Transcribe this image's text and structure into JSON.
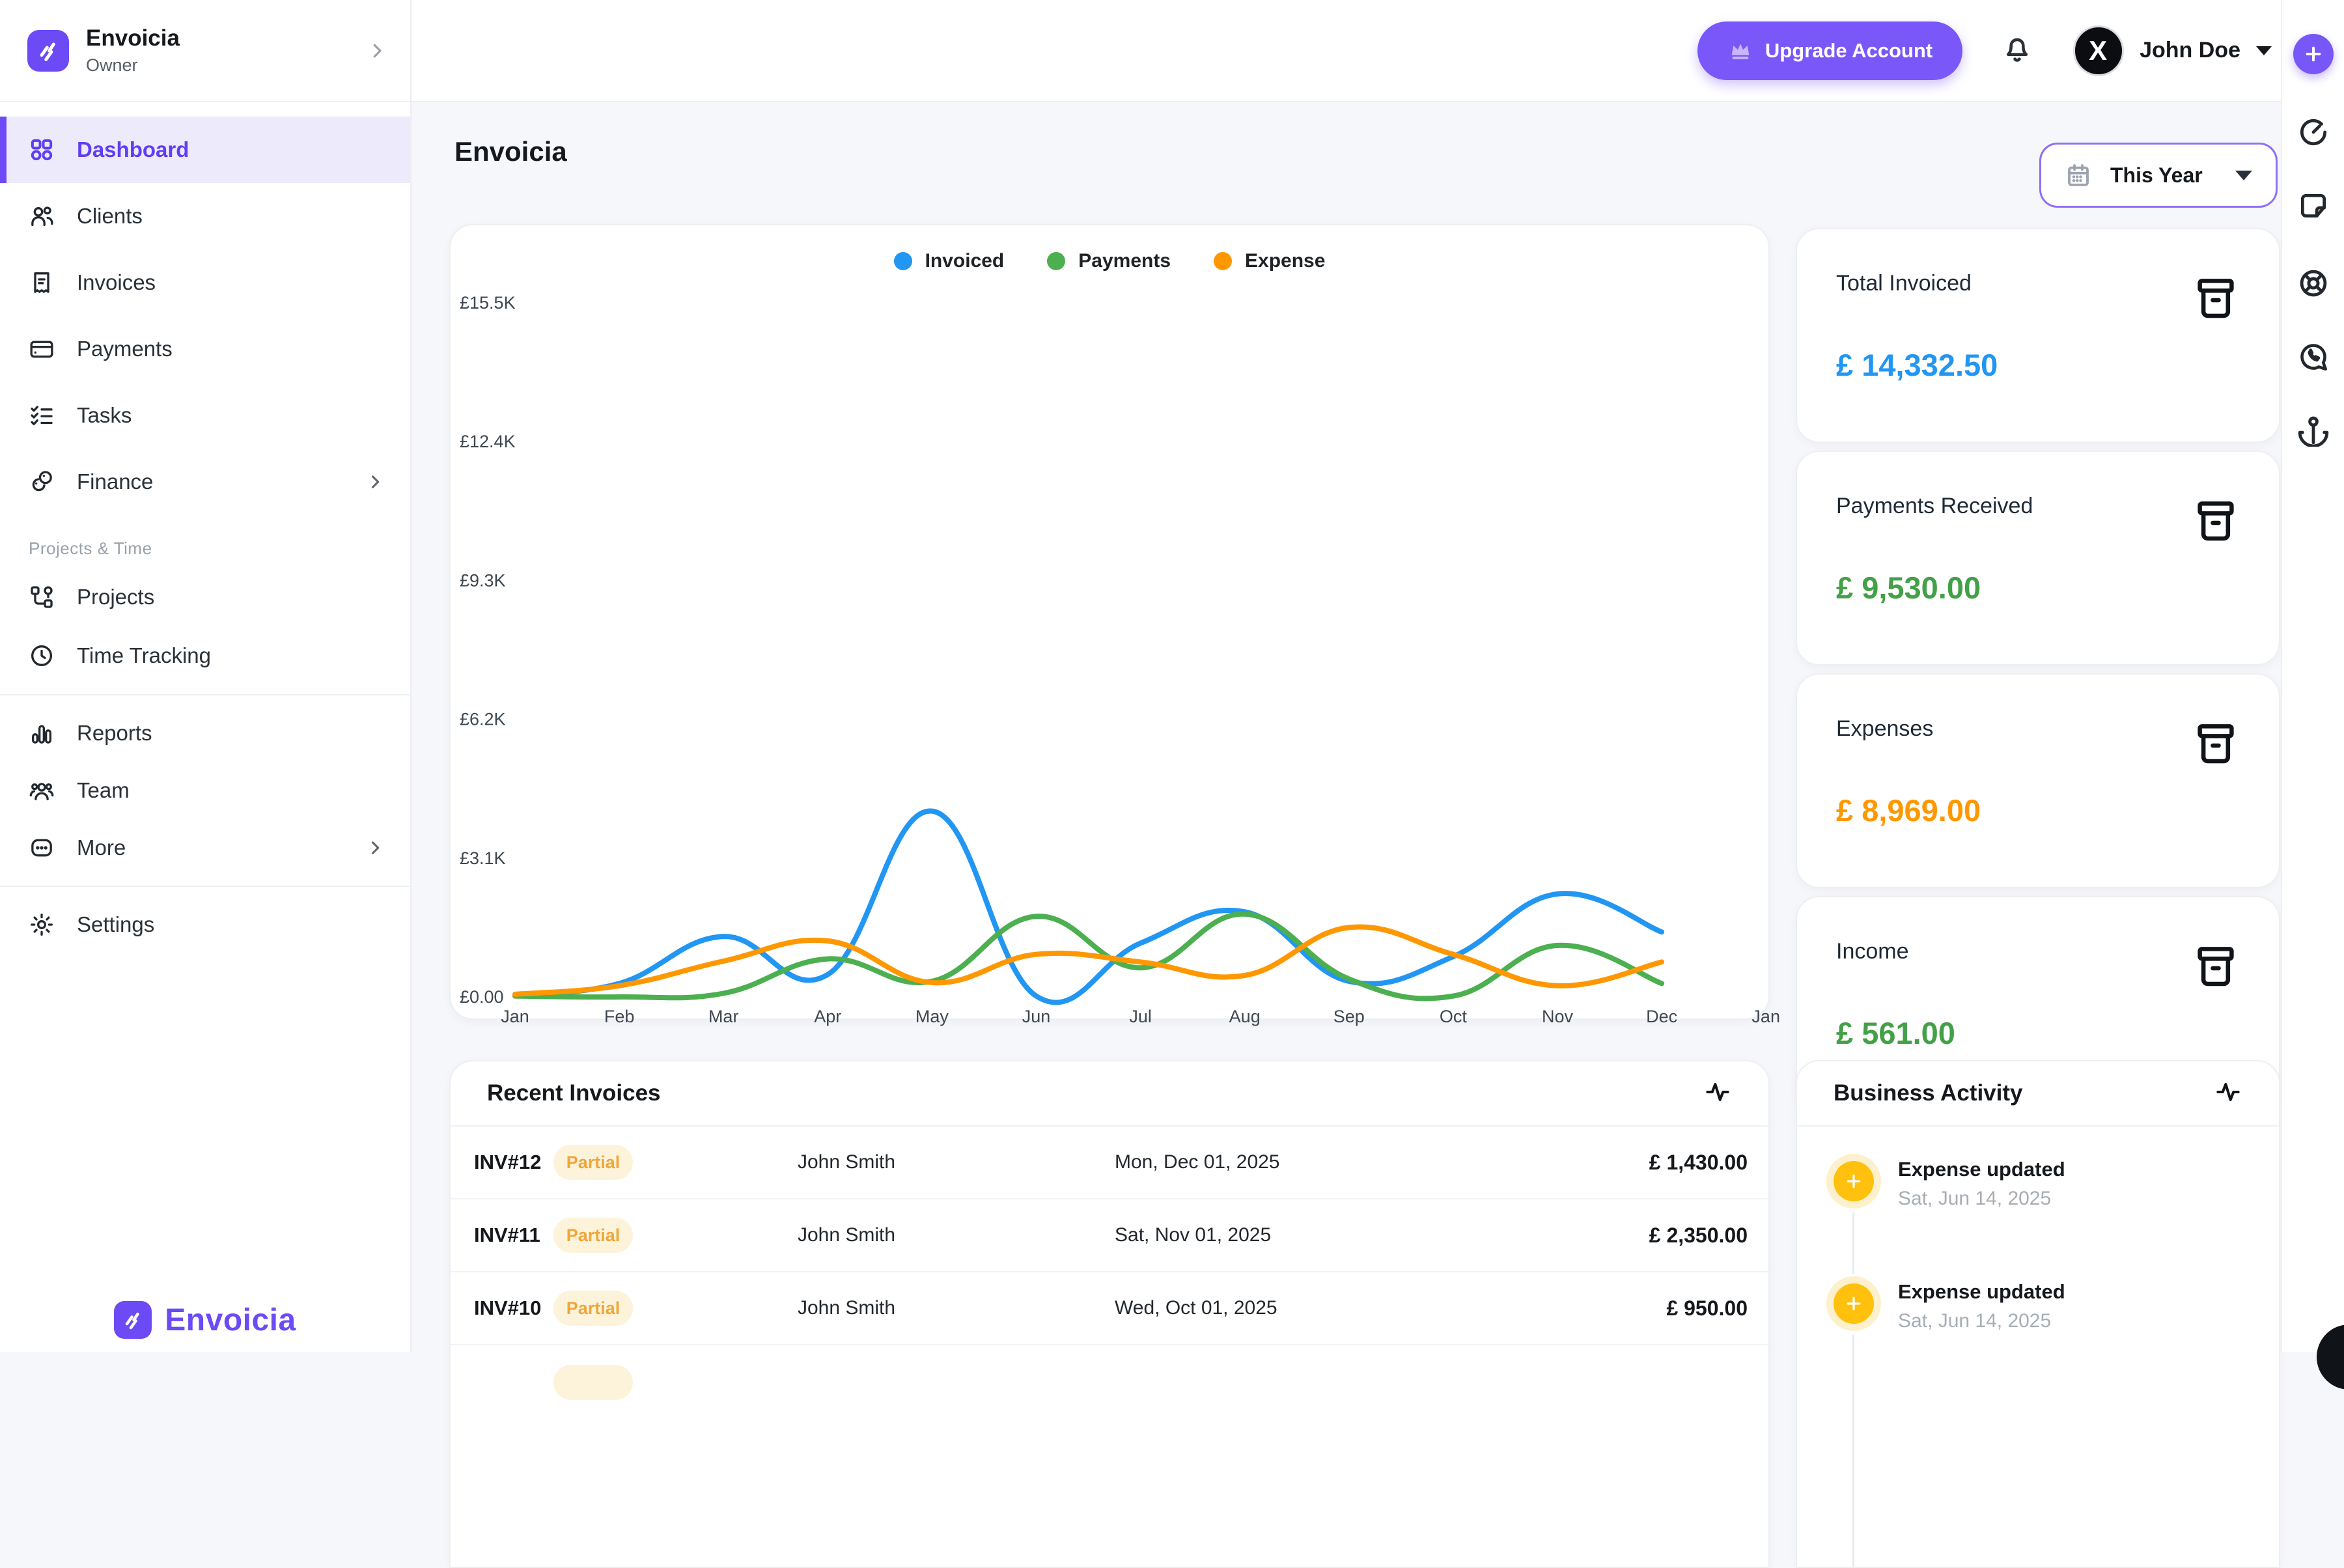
{
  "brand": {
    "name": "Envoicia",
    "role": "Owner",
    "footer_name": "Envoicia"
  },
  "header": {
    "upgrade_label": "Upgrade Account",
    "user_name": "John Doe",
    "avatar_text": "X"
  },
  "sidebar": {
    "main_items": [
      {
        "label": "Dashboard"
      },
      {
        "label": "Clients"
      },
      {
        "label": "Invoices"
      },
      {
        "label": "Payments"
      },
      {
        "label": "Tasks"
      },
      {
        "label": "Finance"
      }
    ],
    "section_label": "Projects & Time",
    "project_items": [
      {
        "label": "Projects"
      },
      {
        "label": "Time Tracking"
      }
    ],
    "tool_items": [
      {
        "label": "Reports"
      },
      {
        "label": "Team"
      },
      {
        "label": "More"
      }
    ],
    "settings_label": "Settings"
  },
  "page": {
    "title": "Envoicia",
    "date_filter": "This Year"
  },
  "chart_data": {
    "type": "line",
    "x_labels": [
      "Jan",
      "Feb",
      "Mar",
      "Apr",
      "May",
      "Jun",
      "Jul",
      "Aug",
      "Sep",
      "Oct",
      "Nov",
      "Dec",
      "Jan"
    ],
    "y_ticks": [
      "£0.00",
      "£3.1K",
      "£6.2K",
      "£9.3K",
      "£12.4K",
      "£15.5K"
    ],
    "y_min_k": 0,
    "y_max_k": 15.5,
    "unit": "GBP (thousands)",
    "grid": false,
    "legend_position": "top",
    "series": [
      {
        "name": "Invoiced",
        "color": "#2196F3",
        "values_k": [
          0.05,
          0.3,
          1.35,
          0.5,
          4.15,
          0.02,
          1.2,
          1.9,
          0.35,
          0.9,
          2.3,
          1.45
        ]
      },
      {
        "name": "Payments",
        "color": "#4CAF50",
        "values_k": [
          0.02,
          0.0,
          0.08,
          0.85,
          0.35,
          1.8,
          0.65,
          1.85,
          0.4,
          0.02,
          1.15,
          0.3
        ]
      },
      {
        "name": "Expense",
        "color": "#FF9800",
        "values_k": [
          0.06,
          0.25,
          0.8,
          1.25,
          0.32,
          0.95,
          0.78,
          0.48,
          1.55,
          0.95,
          0.25,
          0.78
        ]
      }
    ]
  },
  "summary_cards": [
    {
      "title": "Total Invoiced",
      "value": "£ 14,332.50",
      "color": "#2196F3"
    },
    {
      "title": "Payments Received",
      "value": "£ 9,530.00",
      "color": "#43A047"
    },
    {
      "title": "Expenses",
      "value": "£ 8,969.00",
      "color": "#FF9800"
    },
    {
      "title": "Income",
      "value": "£ 561.00",
      "color": "#43A047"
    }
  ],
  "recent_invoices": {
    "title": "Recent Invoices",
    "rows": [
      {
        "id": "INV#12",
        "status": "Partial",
        "client": "John Smith",
        "date": "Mon, Dec 01, 2025",
        "amount": "£ 1,430.00"
      },
      {
        "id": "INV#11",
        "status": "Partial",
        "client": "John Smith",
        "date": "Sat, Nov 01, 2025",
        "amount": "£ 2,350.00"
      },
      {
        "id": "INV#10",
        "status": "Partial",
        "client": "John Smith",
        "date": "Wed, Oct 01, 2025",
        "amount": "£ 950.00"
      }
    ]
  },
  "business_activity": {
    "title": "Business Activity",
    "items": [
      {
        "title": "Expense updated",
        "date": "Sat, Jun 14, 2025"
      },
      {
        "title": "Expense updated",
        "date": "Sat, Jun 14, 2025"
      }
    ]
  },
  "icons": {
    "toolbar": [
      "plus-icon",
      "timer-icon",
      "note-icon",
      "lifebuoy-icon",
      "whatsapp-icon",
      "anchor-icon"
    ],
    "accent_purple": "#6C4AF6",
    "badge_bg": "#FCF3DA",
    "badge_text": "#F0A63A"
  }
}
